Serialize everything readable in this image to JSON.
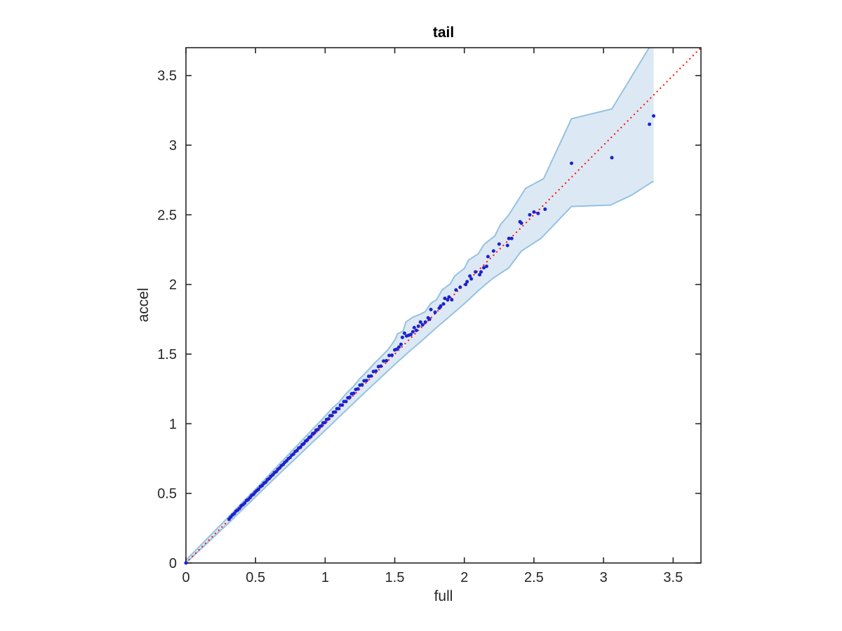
{
  "chart_data": {
    "type": "scatter",
    "title": "tail",
    "xlabel": "full",
    "ylabel": "accel",
    "xlim": [
      0,
      3.7
    ],
    "ylim": [
      0,
      3.7
    ],
    "grid": false,
    "legend": "none",
    "x_ticks": [
      0,
      0.5,
      1,
      1.5,
      2,
      2.5,
      3,
      3.5
    ],
    "y_ticks": [
      0,
      0.5,
      1,
      1.5,
      2,
      2.5,
      3,
      3.5
    ],
    "x_tick_labels": [
      "0",
      "0.5",
      "1",
      "1.5",
      "2",
      "2.5",
      "3",
      "3.5"
    ],
    "y_tick_labels": [
      "0",
      "0.5",
      "1",
      "1.5",
      "2",
      "2.5",
      "3",
      "3.5"
    ],
    "colors": {
      "marker": "#1c22cf",
      "identity_line": "#ff2014",
      "band_fill": "#dce9f4",
      "band_edge": "#94c2e0",
      "axis": "#262626"
    },
    "identity_line": {
      "style": "dotted",
      "from": [
        0,
        0
      ],
      "to": [
        3.7,
        3.7
      ]
    },
    "envelope": {
      "upper": [
        [
          0,
          0.02
        ],
        [
          0.31,
          0.335
        ],
        [
          0.4,
          0.43
        ],
        [
          0.5,
          0.53
        ],
        [
          0.6,
          0.635
        ],
        [
          0.7,
          0.74
        ],
        [
          0.8,
          0.845
        ],
        [
          0.9,
          0.95
        ],
        [
          1.0,
          1.055
        ],
        [
          1.05,
          1.11
        ],
        [
          1.1,
          1.155
        ],
        [
          1.15,
          1.215
        ],
        [
          1.2,
          1.265
        ],
        [
          1.25,
          1.325
        ],
        [
          1.3,
          1.375
        ],
        [
          1.35,
          1.43
        ],
        [
          1.42,
          1.5
        ],
        [
          1.45,
          1.53
        ],
        [
          1.5,
          1.6
        ],
        [
          1.52,
          1.645
        ],
        [
          1.56,
          1.665
        ],
        [
          1.58,
          1.73
        ],
        [
          1.63,
          1.765
        ],
        [
          1.68,
          1.785
        ],
        [
          1.72,
          1.805
        ],
        [
          1.76,
          1.865
        ],
        [
          1.8,
          1.89
        ],
        [
          1.84,
          1.96
        ],
        [
          1.9,
          2.005
        ],
        [
          1.93,
          2.06
        ],
        [
          2.0,
          2.115
        ],
        [
          2.03,
          2.175
        ],
        [
          2.1,
          2.22
        ],
        [
          2.14,
          2.285
        ],
        [
          2.22,
          2.35
        ],
        [
          2.26,
          2.43
        ],
        [
          2.32,
          2.5
        ],
        [
          2.44,
          2.69
        ],
        [
          2.57,
          2.76
        ],
        [
          2.77,
          3.19
        ],
        [
          3.06,
          3.26
        ],
        [
          3.34,
          3.72
        ],
        [
          3.36,
          3.72
        ]
      ],
      "lower": [
        [
          0,
          0
        ],
        [
          0.31,
          0.29
        ],
        [
          0.4,
          0.378
        ],
        [
          0.5,
          0.475
        ],
        [
          0.6,
          0.572
        ],
        [
          0.7,
          0.668
        ],
        [
          0.8,
          0.762
        ],
        [
          0.9,
          0.858
        ],
        [
          1.0,
          0.952
        ],
        [
          1.1,
          1.048
        ],
        [
          1.2,
          1.143
        ],
        [
          1.3,
          1.238
        ],
        [
          1.4,
          1.332
        ],
        [
          1.5,
          1.425
        ],
        [
          1.6,
          1.515
        ],
        [
          1.7,
          1.6
        ],
        [
          1.8,
          1.69
        ],
        [
          1.9,
          1.775
        ],
        [
          2.0,
          1.862
        ],
        [
          2.1,
          1.955
        ],
        [
          2.2,
          2.04
        ],
        [
          2.32,
          2.12
        ],
        [
          2.41,
          2.24
        ],
        [
          2.55,
          2.33
        ],
        [
          2.77,
          2.56
        ],
        [
          3.05,
          2.57
        ],
        [
          3.2,
          2.64
        ],
        [
          3.34,
          2.73
        ],
        [
          3.36,
          2.74
        ]
      ]
    },
    "points": [
      [
        0,
        0
      ],
      [
        0.31,
        0.315
      ],
      [
        0.322,
        0.33
      ],
      [
        0.335,
        0.345
      ],
      [
        0.348,
        0.355
      ],
      [
        0.36,
        0.372
      ],
      [
        0.372,
        0.38
      ],
      [
        0.385,
        0.392
      ],
      [
        0.397,
        0.41
      ],
      [
        0.41,
        0.418
      ],
      [
        0.422,
        0.43
      ],
      [
        0.435,
        0.448
      ],
      [
        0.447,
        0.455
      ],
      [
        0.46,
        0.468
      ],
      [
        0.472,
        0.485
      ],
      [
        0.485,
        0.492
      ],
      [
        0.497,
        0.508
      ],
      [
        0.51,
        0.52
      ],
      [
        0.522,
        0.53
      ],
      [
        0.535,
        0.548
      ],
      [
        0.548,
        0.556
      ],
      [
        0.56,
        0.572
      ],
      [
        0.573,
        0.58
      ],
      [
        0.585,
        0.598
      ],
      [
        0.598,
        0.606
      ],
      [
        0.61,
        0.622
      ],
      [
        0.623,
        0.632
      ],
      [
        0.635,
        0.648
      ],
      [
        0.648,
        0.655
      ],
      [
        0.66,
        0.672
      ],
      [
        0.673,
        0.682
      ],
      [
        0.685,
        0.698
      ],
      [
        0.698,
        0.707
      ],
      [
        0.71,
        0.722
      ],
      [
        0.723,
        0.733
      ],
      [
        0.735,
        0.748
      ],
      [
        0.748,
        0.757
      ],
      [
        0.76,
        0.774
      ],
      [
        0.773,
        0.782
      ],
      [
        0.785,
        0.8
      ],
      [
        0.798,
        0.808
      ],
      [
        0.81,
        0.825
      ],
      [
        0.823,
        0.832
      ],
      [
        0.835,
        0.85
      ],
      [
        0.848,
        0.858
      ],
      [
        0.86,
        0.876
      ],
      [
        0.873,
        0.884
      ],
      [
        0.885,
        0.902
      ],
      [
        0.898,
        0.908
      ],
      [
        0.91,
        0.928
      ],
      [
        0.923,
        0.934
      ],
      [
        0.935,
        0.954
      ],
      [
        0.948,
        0.958
      ],
      [
        0.96,
        0.98
      ],
      [
        0.973,
        0.984
      ],
      [
        0.985,
        1.006
      ],
      [
        0.998,
        1.008
      ],
      [
        1.01,
        1.03
      ],
      [
        1.023,
        1.034
      ],
      [
        1.035,
        1.057
      ],
      [
        1.048,
        1.058
      ],
      [
        1.06,
        1.082
      ],
      [
        1.073,
        1.084
      ],
      [
        1.085,
        1.108
      ],
      [
        1.098,
        1.108
      ],
      [
        1.11,
        1.133
      ],
      [
        1.123,
        1.134
      ],
      [
        1.135,
        1.159
      ],
      [
        1.15,
        1.16
      ],
      [
        1.163,
        1.186
      ],
      [
        1.177,
        1.19
      ],
      [
        1.19,
        1.215
      ],
      [
        1.205,
        1.218
      ],
      [
        1.22,
        1.246
      ],
      [
        1.235,
        1.25
      ],
      [
        1.25,
        1.277
      ],
      [
        1.265,
        1.28
      ],
      [
        1.28,
        1.308
      ],
      [
        1.297,
        1.31
      ],
      [
        1.313,
        1.34
      ],
      [
        1.33,
        1.342
      ],
      [
        1.347,
        1.375
      ],
      [
        1.365,
        1.378
      ],
      [
        1.383,
        1.41
      ],
      [
        1.4,
        1.413
      ],
      [
        1.42,
        1.45
      ],
      [
        1.44,
        1.452
      ],
      [
        1.46,
        1.49
      ],
      [
        1.48,
        1.492
      ],
      [
        1.5,
        1.53
      ],
      [
        1.515,
        1.535
      ],
      [
        1.53,
        1.55
      ],
      [
        1.545,
        1.57
      ],
      [
        1.555,
        1.62
      ],
      [
        1.57,
        1.65
      ],
      [
        1.585,
        1.63
      ],
      [
        1.6,
        1.635
      ],
      [
        1.615,
        1.64
      ],
      [
        1.63,
        1.66
      ],
      [
        1.64,
        1.69
      ],
      [
        1.655,
        1.67
      ],
      [
        1.67,
        1.7
      ],
      [
        1.685,
        1.73
      ],
      [
        1.7,
        1.71
      ],
      [
        1.72,
        1.73
      ],
      [
        1.74,
        1.76
      ],
      [
        1.75,
        1.75
      ],
      [
        1.76,
        1.82
      ],
      [
        1.79,
        1.8
      ],
      [
        1.82,
        1.83
      ],
      [
        1.83,
        1.845
      ],
      [
        1.85,
        1.86
      ],
      [
        1.86,
        1.9
      ],
      [
        1.88,
        1.89
      ],
      [
        1.89,
        1.91
      ],
      [
        1.91,
        1.89
      ],
      [
        1.94,
        1.96
      ],
      [
        1.97,
        1.98
      ],
      [
        2.01,
        2.0
      ],
      [
        2.02,
        2.02
      ],
      [
        2.04,
        2.06
      ],
      [
        2.05,
        2.04
      ],
      [
        2.08,
        2.09
      ],
      [
        2.11,
        2.07
      ],
      [
        2.12,
        2.09
      ],
      [
        2.14,
        2.12
      ],
      [
        2.16,
        2.13
      ],
      [
        2.17,
        2.2
      ],
      [
        2.21,
        2.24
      ],
      [
        2.25,
        2.29
      ],
      [
        2.31,
        2.28
      ],
      [
        2.32,
        2.33
      ],
      [
        2.34,
        2.33
      ],
      [
        2.4,
        2.45
      ],
      [
        2.41,
        2.44
      ],
      [
        2.47,
        2.5
      ],
      [
        2.5,
        2.52
      ],
      [
        2.53,
        2.51
      ],
      [
        2.58,
        2.54
      ],
      [
        2.77,
        2.87
      ],
      [
        3.06,
        2.91
      ],
      [
        3.33,
        3.15
      ],
      [
        3.36,
        3.21
      ]
    ]
  }
}
